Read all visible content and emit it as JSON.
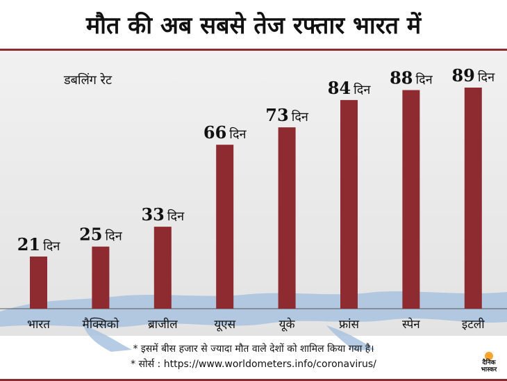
{
  "title": "मौत की अब सबसे तेज रफ्तार भारत में",
  "subtitle": "डबलिंग रेट",
  "chart_data": {
    "type": "bar",
    "categories": [
      "भारत",
      "मैक्सिको",
      "ब्राजील",
      "यूएस",
      "यूके",
      "फ्रांस",
      "स्पेन",
      "इटली"
    ],
    "values": [
      21,
      25,
      33,
      66,
      73,
      84,
      88,
      89
    ],
    "value_unit": "दिन",
    "bar_color": "#8e2b30",
    "ylim": [
      0,
      100
    ]
  },
  "notes": {
    "line1": "* इसमें बीस हजार से ज्यादा मौत वाले देशों को शामिल किया गया है।",
    "line2": "* सोर्स : https://www.worldometers.info/coronavirus/"
  },
  "logo": {
    "line1": "दैनिक",
    "line2": "भास्कर",
    "dot_color": "#f7a531"
  }
}
